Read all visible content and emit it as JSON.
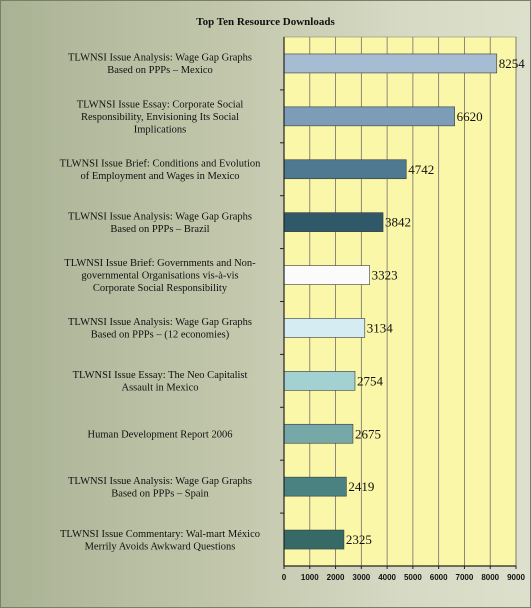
{
  "chart_data": {
    "type": "bar",
    "orientation": "horizontal",
    "title": "Top Ten Resource Downloads",
    "xlim": [
      0,
      9000
    ],
    "xticks": [
      0,
      1000,
      2000,
      3000,
      4000,
      5000,
      6000,
      7000,
      8000,
      9000
    ],
    "grid": true,
    "categories": [
      [
        "TLWNSI Issue Analysis:  Wage Gap Graphs",
        "Based on PPPs – Mexico"
      ],
      [
        "TLWNSI Issue Essay:  Corporate Social",
        "Responsibility, Envisioning Its Social",
        "Implications"
      ],
      [
        "TLWNSI Issue Brief:  Conditions and Evolution",
        "of Employment and Wages in Mexico"
      ],
      [
        "TLWNSI Issue Analysis:  Wage Gap Graphs",
        "Based on PPPs – Brazil"
      ],
      [
        "TLWNSI Issue Brief:  Governments and Non-",
        "governmental Organisations vis-à-vis",
        "Corporate Social Responsibility"
      ],
      [
        "TLWNSI Issue Analysis:  Wage Gap Graphs",
        "Based on PPPs – (12 economies)"
      ],
      [
        "TLWNSI Issue Essay:  The Neo  Capitalist",
        "Assault in Mexico"
      ],
      [
        "Human Development Report 2006"
      ],
      [
        "TLWNSI Issue Analysis:  Wage Gap Graphs",
        "Based on PPPs – Spain"
      ],
      [
        "TLWNSI Issue Commentary: Wal-mart México",
        "Merrily Avoids Awkward Questions"
      ]
    ],
    "values": [
      8254,
      6620,
      4742,
      3842,
      3323,
      3134,
      2754,
      2675,
      2419,
      2325
    ],
    "colors": [
      "#a5bcd2",
      "#7c9cb8",
      "#4f7990",
      "#2f5868",
      "#fbfbfb",
      "#d4ecf2",
      "#a3d0d0",
      "#76a8a8",
      "#4a8282",
      "#356a66"
    ],
    "plot_background": "#fbf7a8",
    "gridline_color": "#6f6f6f"
  }
}
